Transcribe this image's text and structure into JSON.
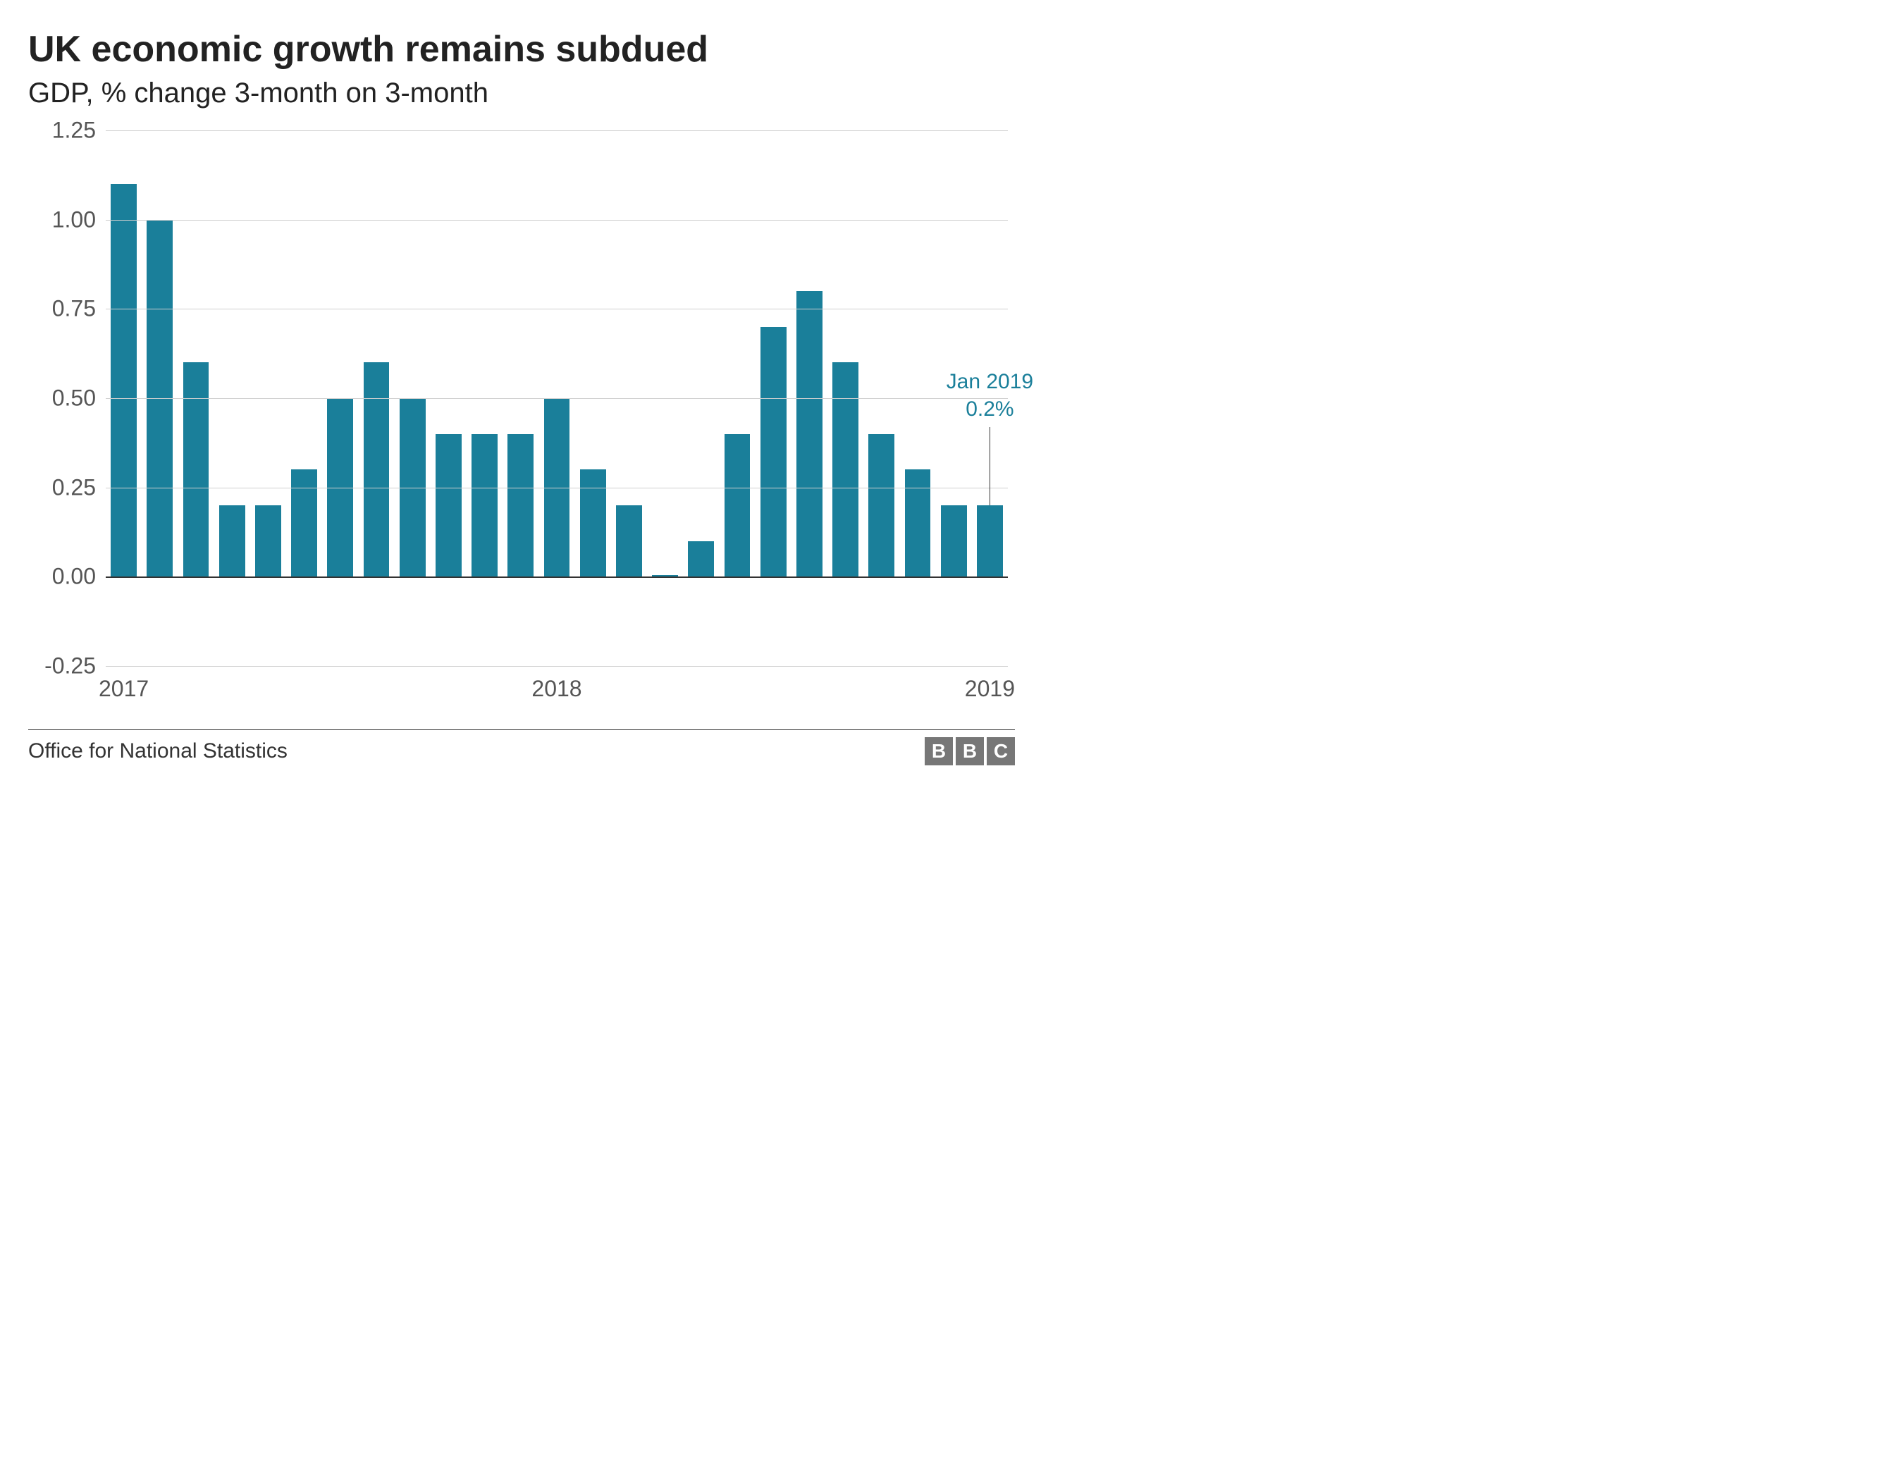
{
  "chart": {
    "type": "bar",
    "title": "UK economic growth remains subdued",
    "subtitle": "GDP, % change 3-month on 3-month",
    "title_fontsize": 52,
    "subtitle_fontsize": 40,
    "bar_color": "#1a7f9a",
    "background_color": "#ffffff",
    "grid_color": "#cfcfcf",
    "baseline_color": "#333333",
    "axis_text_color": "#555555",
    "ylim": [
      -0.25,
      1.25
    ],
    "yticks": [
      -0.25,
      0.0,
      0.25,
      0.5,
      0.75,
      1.0,
      1.25
    ],
    "ytick_labels": [
      "-0.25",
      "0.00",
      "0.25",
      "0.50",
      "0.75",
      "1.00",
      "1.25"
    ],
    "xticks": [
      {
        "index": 0,
        "label": "2017"
      },
      {
        "index": 12,
        "label": "2018"
      },
      {
        "index": 24,
        "label": "2019"
      }
    ],
    "values": [
      1.1,
      1.0,
      0.6,
      0.2,
      0.2,
      0.3,
      0.5,
      0.6,
      0.5,
      0.4,
      0.4,
      0.4,
      0.5,
      0.3,
      0.2,
      0.005,
      0.1,
      0.4,
      0.7,
      0.8,
      0.6,
      0.4,
      0.3,
      0.2,
      0.2
    ],
    "bar_width_ratio": 0.72,
    "annotation": {
      "index": 24,
      "label_line1": "Jan 2019",
      "label_line2": "0.2%",
      "color": "#1a7f9a",
      "fontsize": 30
    }
  },
  "footer": {
    "source": "Office for National Statistics",
    "logo": [
      "B",
      "B",
      "C"
    ],
    "logo_bg": "#777777",
    "logo_fg": "#ffffff"
  }
}
